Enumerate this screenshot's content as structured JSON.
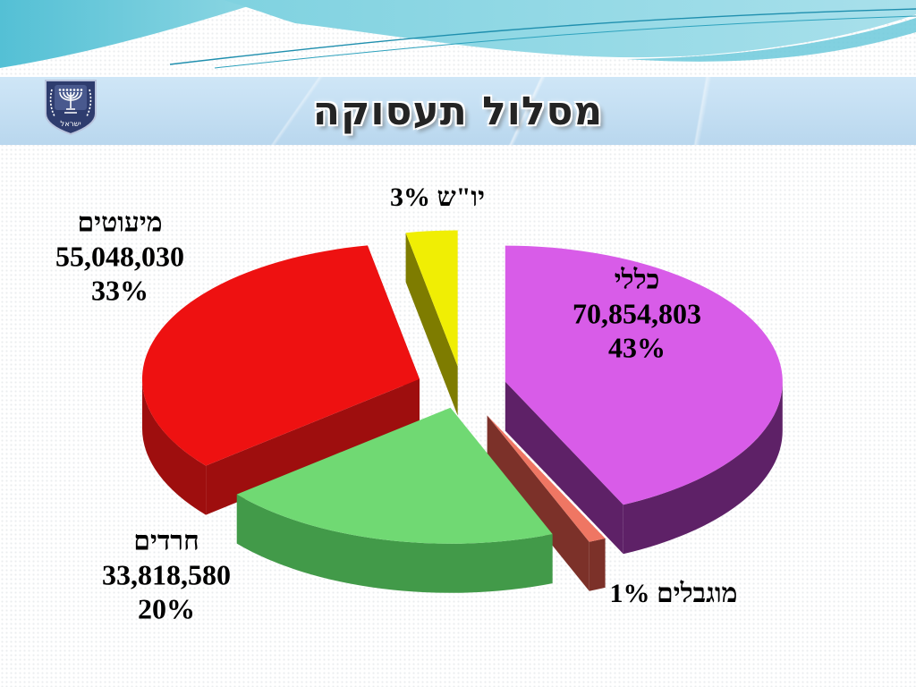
{
  "header": {
    "title": "מסלול תעסוקה",
    "emblem_caption": "ישראל",
    "colors": {
      "wave_teal_dark": "#54c0d5",
      "wave_teal_light": "#a9e0eb",
      "wave_line": "#1f8fae",
      "banner_blue": "#c3def2",
      "emblem_navy": "#2e3c6e"
    }
  },
  "chart_data": {
    "type": "pie",
    "style": "3d-exploded",
    "title": "מסלול תעסוקה",
    "legend_position": "none",
    "start_angle_deg": 0,
    "direction": "clockwise-from-top",
    "slices": [
      {
        "key": "general",
        "name": "כללי",
        "value": 70854803,
        "display_value": "70,854,803",
        "percent": "43%",
        "percent_value": 43,
        "top_color": "#d85ce8",
        "side_color": "#5e2167"
      },
      {
        "key": "disabled",
        "name": "מוגבלים",
        "percent": "1%",
        "percent_value": 1,
        "top_color": "#ef7663",
        "side_color": "#7c3129"
      },
      {
        "key": "haredim",
        "name": "חרדים",
        "value": 33818580,
        "display_value": "33,818,580",
        "percent": "20%",
        "percent_value": 20,
        "top_color": "#70d973",
        "side_color": "#429a49"
      },
      {
        "key": "minorities",
        "name": "מיעוטים",
        "value": 55048030,
        "display_value": "55,048,030",
        "percent": "33%",
        "percent_value": 33,
        "top_color": "#ee1111",
        "side_color": "#9e0e0e"
      },
      {
        "key": "yosh",
        "name": "יו\"ש",
        "percent": "3%",
        "percent_value": 3,
        "top_color": "#f0ee04",
        "side_color": "#7e7c00"
      }
    ]
  }
}
